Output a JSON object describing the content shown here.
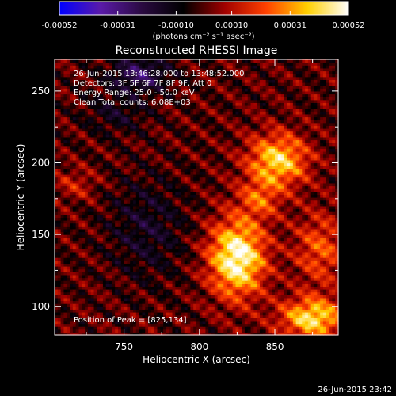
{
  "chart_data": {
    "type": "heatmap",
    "title": "Reconstructed RHESSI Image",
    "xlabel": "Heliocentric X (arcsec)",
    "ylabel": "Heliocentric Y (arcsec)",
    "xlim": [
      704,
      892
    ],
    "ylim": [
      80,
      272
    ],
    "x_ticks": [
      750,
      800,
      850
    ],
    "y_ticks": [
      100,
      150,
      200,
      250
    ],
    "colorbar": {
      "range": [
        -0.00052,
        0.00052
      ],
      "tick_values": [
        -0.00052,
        -0.00031,
        -0.0001,
        0.0001,
        0.00031,
        0.00052
      ],
      "tick_labels": [
        "-0.00052",
        "-0.00031",
        "-0.00010",
        "0.00010",
        "0.00031",
        "0.00052"
      ],
      "unit_label": "(photons cm⁻² s⁻¹ asec⁻²)"
    },
    "colormap": [
      "#0000ff",
      "#5a1aa8",
      "#2a0a40",
      "#000000",
      "#a00000",
      "#ff4000",
      "#ffd000",
      "#ffffff"
    ],
    "annotations": [
      "26-Jun-2015 13:46:28.000 to 13:48:52.000",
      "Detectors: 3F 5F 6F 7F 8F 9F, Att 0",
      "Energy Range: 25.0 - 50.0 keV",
      "Clean    Total counts: 6.08E+03"
    ],
    "peak_label": "Position of Peak = [825,134]",
    "peak": [
      825,
      134
    ],
    "sources": [
      {
        "x": 825,
        "y": 134,
        "amp": 0.00052,
        "sx": 13,
        "sy": 19
      },
      {
        "x": 852,
        "y": 202,
        "amp": 0.0004,
        "sx": 14,
        "sy": 13
      },
      {
        "x": 875,
        "y": 92,
        "amp": 0.00042,
        "sx": 15,
        "sy": 10
      },
      {
        "x": 840,
        "y": 175,
        "amp": 0.0002,
        "sx": 10,
        "sy": 10
      },
      {
        "x": 880,
        "y": 140,
        "amp": 0.00022,
        "sx": 12,
        "sy": 18
      },
      {
        "x": 718,
        "y": 185,
        "amp": 0.00012,
        "sx": 10,
        "sy": 8
      },
      {
        "x": 760,
        "y": 262,
        "amp": -0.00025,
        "sx": 14,
        "sy": 9
      },
      {
        "x": 765,
        "y": 155,
        "amp": -0.00014,
        "sx": 18,
        "sy": 25
      },
      {
        "x": 745,
        "y": 235,
        "amp": -0.00012,
        "sx": 15,
        "sy": 10
      }
    ]
  },
  "footer": {
    "timestamp": "26-Jun-2015 23:42"
  }
}
